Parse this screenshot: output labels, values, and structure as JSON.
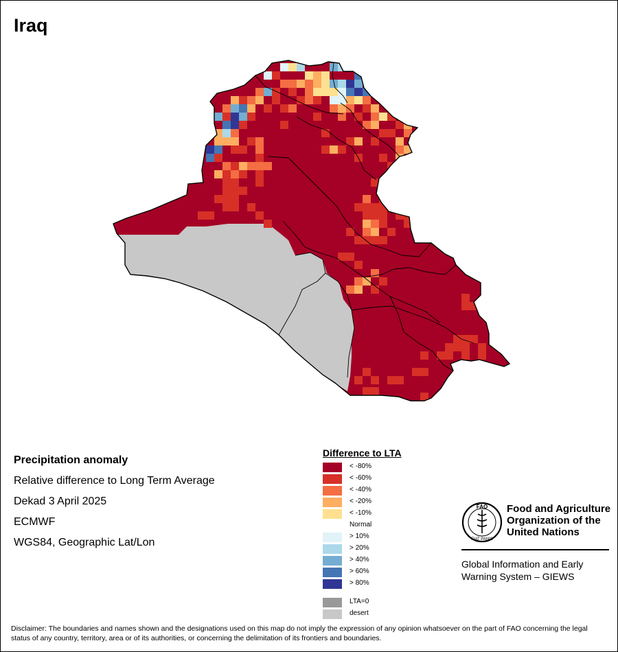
{
  "title": "Iraq",
  "info": {
    "heading": "Precipitation anomaly",
    "lines": [
      "Relative difference to Long Term Average",
      "Dekad 3 April 2025",
      "ECMWF",
      "WGS84, Geographic Lat/Lon"
    ]
  },
  "legend": {
    "title": "Difference to LTA",
    "items": [
      {
        "label": "< -80%",
        "color": "#a50026"
      },
      {
        "label": "< -60%",
        "color": "#d73027"
      },
      {
        "label": "< -40%",
        "color": "#f46d43"
      },
      {
        "label": "< -20%",
        "color": "#fdae61"
      },
      {
        "label": "< -10%",
        "color": "#fee090"
      },
      {
        "label": "Normal",
        "color": "#ffffff"
      },
      {
        "label": "> 10%",
        "color": "#e0f3f8"
      },
      {
        "label": "> 20%",
        "color": "#abd9e9"
      },
      {
        "label": "> 40%",
        "color": "#74add1"
      },
      {
        "label": "> 60%",
        "color": "#4575b4"
      },
      {
        "label": "> 80%",
        "color": "#313695"
      }
    ],
    "extra": [
      {
        "label": "LTA=0",
        "color": "#999999"
      },
      {
        "label": "desert",
        "color": "#c8c8c8"
      }
    ]
  },
  "fao": {
    "name": "Food and Agriculture Organization of the United Nations",
    "system": "Global Information and Early Warning System – GIEWS",
    "emblem_letters": "FAO",
    "emblem_motto": "FIAT PANIS"
  },
  "disclaimer": "Disclaimer: The boundaries and names shown and the designations used on this map do not imply the expression of any opinion whatsoever on the part of FAO concerning the legal status of any country, territory, area or of its authorities, or concerning the delimitation of its frontiers and boundaries."
}
